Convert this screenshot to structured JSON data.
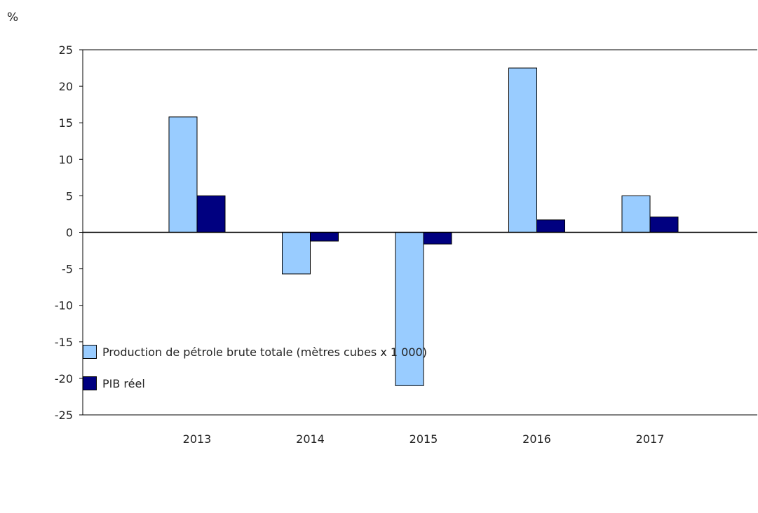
{
  "chart_data": {
    "type": "bar",
    "y_unit_label": "%",
    "categories": [
      "2013",
      "2014",
      "2015",
      "2016",
      "2017"
    ],
    "series": [
      {
        "name": "Production de pétrole brute totale (mètres cubes x 1 000)",
        "color": "#99ccff",
        "values": [
          15.8,
          -5.7,
          -21.0,
          22.5,
          5.0
        ]
      },
      {
        "name": "PIB réel",
        "color": "#000080",
        "values": [
          5.0,
          -1.2,
          -1.6,
          1.7,
          2.1
        ]
      }
    ],
    "ylim": [
      -25,
      25
    ],
    "yticks": [
      25,
      20,
      15,
      10,
      5,
      0,
      -5,
      -10,
      -15,
      -20,
      -25
    ],
    "ytick_labels": [
      "25",
      "20",
      "15",
      "10",
      "5",
      "0",
      "-5",
      "-10",
      "-15",
      "-20",
      "-25"
    ],
    "grid": false,
    "legend_placement": "bottom-left"
  }
}
